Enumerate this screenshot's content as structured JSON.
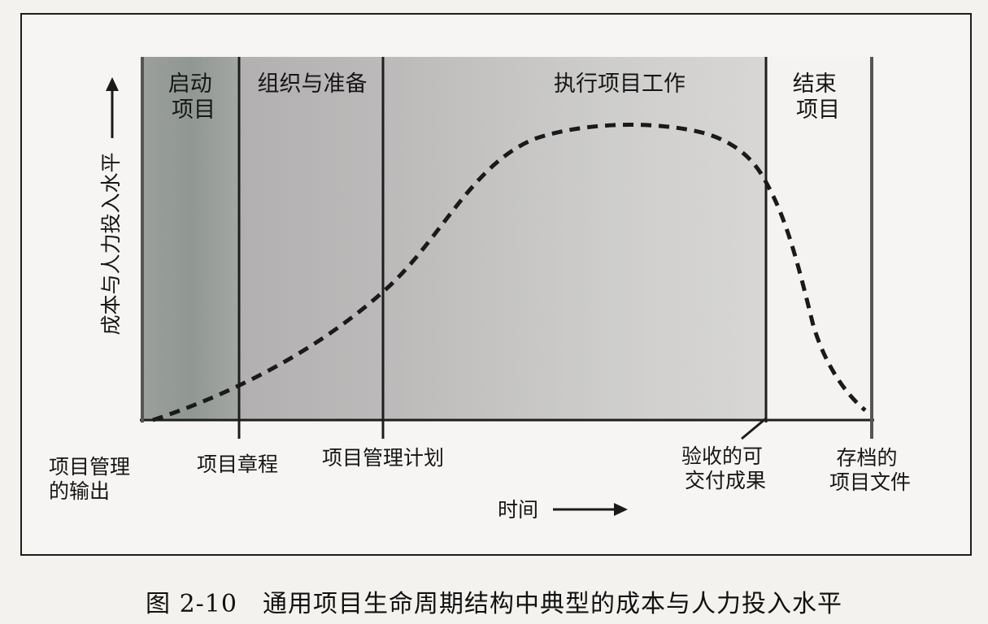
{
  "phases": [
    {
      "label": [
        "启动",
        "项目"
      ]
    },
    {
      "label": [
        "组织与准备"
      ]
    },
    {
      "label": [
        "执行项目工作"
      ]
    },
    {
      "label": [
        "结束",
        "项目"
      ]
    }
  ],
  "outputs": [
    {
      "label": [
        "项目管理",
        "的输出"
      ]
    },
    {
      "label": [
        "项目章程"
      ]
    },
    {
      "label": [
        "项目管理计划"
      ]
    },
    {
      "label": [
        "验收的可",
        "交付成果"
      ]
    },
    {
      "label": [
        "存档的",
        "项目文件"
      ]
    }
  ],
  "y_axis_label": "成本与人力投入水平",
  "x_axis_label": "时间",
  "caption": "图 2-10　通用项目生命周期结构中典型的成本与人力投入水平",
  "colors": {
    "line": "#1a1a1a",
    "phase1_fill": "#8e9490",
    "phase2_fill": "#b9b6b6",
    "phase3_fill": "#d8d7d6",
    "background": "#f6f5f3"
  }
}
